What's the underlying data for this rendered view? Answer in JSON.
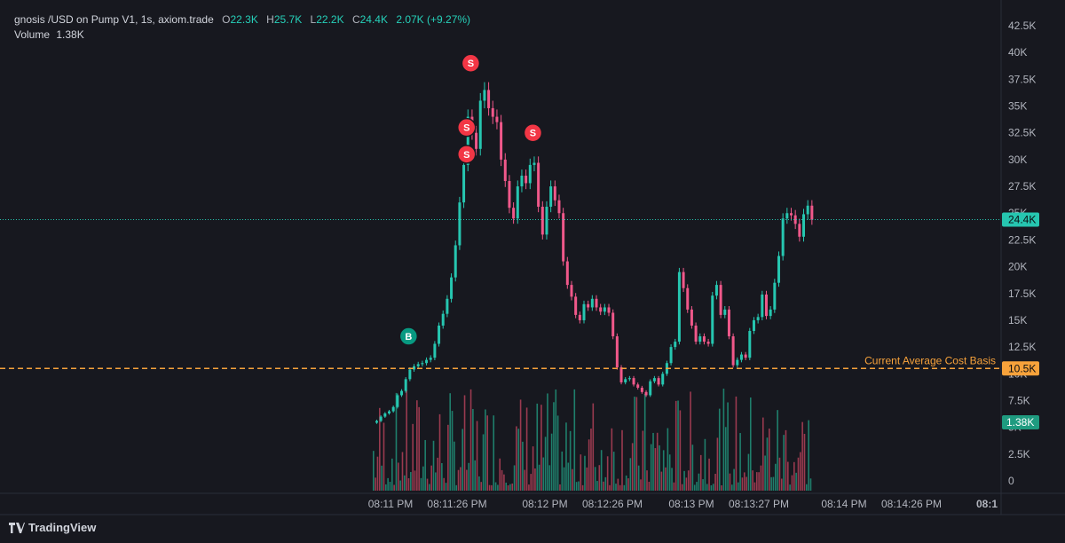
{
  "legend": {
    "symbol": "gnosis /USD on Pump V1, 1s, axiom.trade",
    "o_label": "O",
    "o": "22.3K",
    "h_label": "H",
    "h": "25.7K",
    "l_label": "L",
    "l": "22.2K",
    "c_label": "C",
    "c": "24.4K",
    "change": "2.07K (+9.27%)",
    "volume_label": "Volume",
    "volume": "1.38K"
  },
  "branding": {
    "name": "TradingView"
  },
  "colors": {
    "up": "#26c6b0",
    "down": "#f0588a",
    "vol_up": "#1f7f6c",
    "vol_down": "#9a3a4f",
    "sell_marker": "#f23645",
    "buy_marker": "#089981",
    "cost_basis": "#f7a23b",
    "background": "#17181f"
  },
  "chart_data": {
    "type": "candlestick",
    "title": "gnosis /USD on Pump V1, 1s, axiom.trade",
    "y_axis": {
      "ticks": [
        "42.5K",
        "40K",
        "37.5K",
        "35K",
        "32.5K",
        "30K",
        "27.5K",
        "25K",
        "22.5K",
        "20K",
        "17.5K",
        "15K",
        "12.5K",
        "10K",
        "7.5K",
        "5K",
        "2.5K",
        "0"
      ],
      "range": [
        0,
        42500
      ]
    },
    "x_axis": {
      "ticks": [
        "08:11 PM",
        "08:11:26 PM",
        "08:12 PM",
        "08:12:26 PM",
        "08:13 PM",
        "08:13:27 PM",
        "08:14 PM",
        "08:14:26 PM",
        "08:1"
      ]
    },
    "price_line": {
      "value": 24400,
      "label": "24.4K"
    },
    "cost_basis_line": {
      "value": 10500,
      "label": "10.5K",
      "text": "Current Average Cost Basis"
    },
    "volume_label": "1.38K",
    "close_series": [
      [
        0,
        5600
      ],
      [
        1,
        6000
      ],
      [
        2,
        6300
      ],
      [
        3,
        6500
      ],
      [
        4,
        6900
      ],
      [
        5,
        8000
      ],
      [
        6,
        8400
      ],
      [
        7,
        9500
      ],
      [
        8,
        10400
      ],
      [
        9,
        10700
      ],
      [
        10,
        10900
      ],
      [
        11,
        11000
      ],
      [
        12,
        11300
      ],
      [
        13,
        11500
      ],
      [
        14,
        12800
      ],
      [
        15,
        14500
      ],
      [
        16,
        15600
      ],
      [
        17,
        17000
      ],
      [
        18,
        19000
      ],
      [
        19,
        22000
      ],
      [
        20,
        26000
      ],
      [
        21,
        29500
      ],
      [
        22,
        34000
      ],
      [
        23,
        32500
      ],
      [
        24,
        31000
      ],
      [
        25,
        35500
      ],
      [
        26,
        36500
      ],
      [
        27,
        34800
      ],
      [
        28,
        34000
      ],
      [
        29,
        33500
      ],
      [
        30,
        30000
      ],
      [
        31,
        28000
      ],
      [
        32,
        25500
      ],
      [
        33,
        24500
      ],
      [
        34,
        27500
      ],
      [
        35,
        28500
      ],
      [
        36,
        27800
      ],
      [
        37,
        29500
      ],
      [
        38,
        29700
      ],
      [
        39,
        25600
      ],
      [
        40,
        23000
      ],
      [
        41,
        25600
      ],
      [
        42,
        27500
      ],
      [
        43,
        26200
      ],
      [
        44,
        25000
      ],
      [
        45,
        20500
      ],
      [
        46,
        18300
      ],
      [
        47,
        17200
      ],
      [
        48,
        15500
      ],
      [
        49,
        15000
      ],
      [
        50,
        16500
      ],
      [
        51,
        16200
      ],
      [
        52,
        17000
      ],
      [
        53,
        16200
      ],
      [
        54,
        15800
      ],
      [
        55,
        16200
      ],
      [
        56,
        15700
      ],
      [
        57,
        13500
      ],
      [
        58,
        10600
      ],
      [
        59,
        9200
      ],
      [
        60,
        9500
      ],
      [
        61,
        9600
      ],
      [
        62,
        9000
      ],
      [
        63,
        8700
      ],
      [
        64,
        8300
      ],
      [
        65,
        8000
      ],
      [
        66,
        9300
      ],
      [
        67,
        9600
      ],
      [
        68,
        9000
      ],
      [
        69,
        10000
      ],
      [
        70,
        11000
      ],
      [
        71,
        12500
      ],
      [
        72,
        13000
      ],
      [
        73,
        19500
      ],
      [
        74,
        18000
      ],
      [
        75,
        16000
      ],
      [
        76,
        14500
      ],
      [
        77,
        13000
      ],
      [
        78,
        13500
      ],
      [
        79,
        13000
      ],
      [
        80,
        12800
      ],
      [
        81,
        17300
      ],
      [
        82,
        18300
      ],
      [
        83,
        15500
      ],
      [
        84,
        16000
      ],
      [
        85,
        13500
      ],
      [
        86,
        10800
      ],
      [
        87,
        11300
      ],
      [
        88,
        11800
      ],
      [
        89,
        11500
      ],
      [
        90,
        14000
      ],
      [
        91,
        15000
      ],
      [
        92,
        15300
      ],
      [
        93,
        17400
      ],
      [
        94,
        15400
      ],
      [
        95,
        16000
      ],
      [
        96,
        18500
      ],
      [
        97,
        21000
      ],
      [
        98,
        24500
      ],
      [
        99,
        25000
      ],
      [
        100,
        24800
      ],
      [
        101,
        24000
      ],
      [
        102,
        22800
      ],
      [
        103,
        24900
      ],
      [
        104,
        25700
      ],
      [
        105,
        24400
      ]
    ],
    "markers": [
      {
        "type": "sell",
        "label": "S",
        "index": 23,
        "price": 39000
      },
      {
        "type": "sell",
        "label": "S",
        "index": 22,
        "price": 33000
      },
      {
        "type": "sell",
        "label": "S",
        "index": 22,
        "price": 30500
      },
      {
        "type": "sell",
        "label": "S",
        "index": 38,
        "price": 32500
      },
      {
        "type": "buy",
        "label": "B",
        "index": 8,
        "price": 13500
      }
    ]
  }
}
